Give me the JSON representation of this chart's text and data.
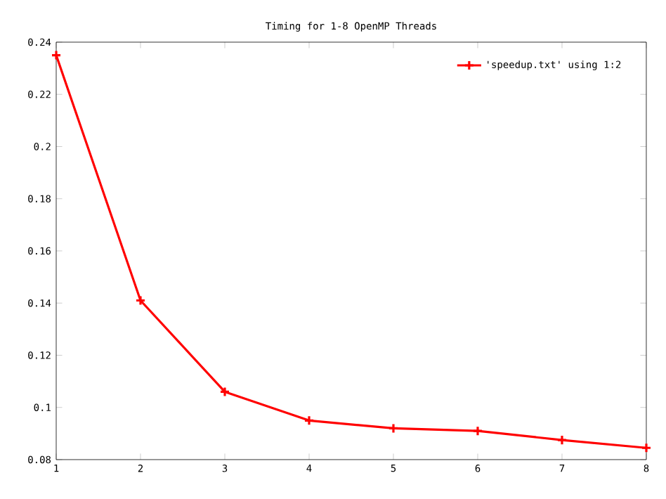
{
  "chart_data": {
    "type": "line",
    "title": "Timing for 1-8 OpenMP Threads",
    "x": [
      1,
      2,
      3,
      4,
      5,
      6,
      7,
      8
    ],
    "series": [
      {
        "name": "'speedup.txt' using 1:2",
        "color": "#ff0000",
        "values": [
          0.235,
          0.141,
          0.106,
          0.095,
          0.092,
          0.091,
          0.0875,
          0.0845
        ]
      }
    ],
    "xlim": [
      1,
      8
    ],
    "xticks": [
      1,
      2,
      3,
      4,
      5,
      6,
      7,
      8
    ],
    "ylim": [
      0.08,
      0.24
    ],
    "yticks": [
      0.08,
      0.1,
      0.12,
      0.14,
      0.16,
      0.18,
      0.2,
      0.22,
      0.24
    ],
    "legend": "top right",
    "marker": "cross",
    "line_style": "solid",
    "grid": false
  }
}
